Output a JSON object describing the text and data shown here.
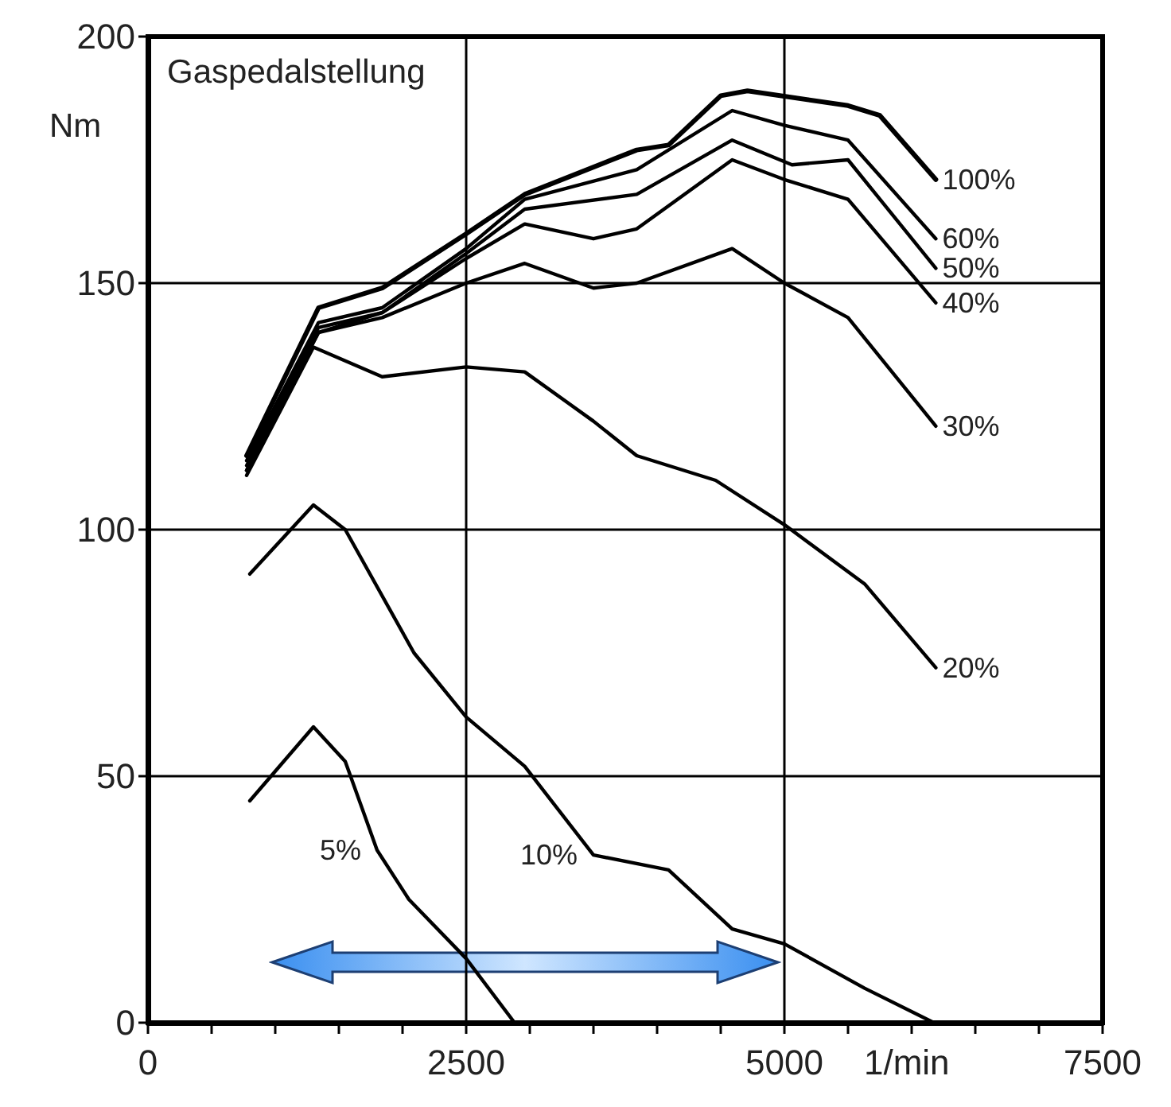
{
  "chart_data": {
    "type": "line",
    "annotations": [
      "Gaspedalstellung"
    ],
    "ylabel": "Nm",
    "xlabel": "1/min",
    "xlim": [
      0,
      7500
    ],
    "ylim": [
      0,
      200
    ],
    "xticks": [
      0,
      {
        "value": 500,
        "label": null
      },
      {
        "value": 1000,
        "label": null
      },
      {
        "value": 1500,
        "label": null
      },
      {
        "value": 2000,
        "label": null
      },
      2500,
      {
        "value": 3000,
        "label": null
      },
      {
        "value": 3500,
        "label": null
      },
      {
        "value": 4000,
        "label": null
      },
      {
        "value": 4500,
        "label": null
      },
      5000,
      {
        "value": 5500,
        "label": null
      },
      {
        "value": 6000,
        "label": null
      },
      {
        "value": 6500,
        "label": null
      },
      {
        "value": 7000,
        "label": null
      },
      7500
    ],
    "yticks": [
      0,
      50,
      100,
      150,
      200
    ],
    "grid": true,
    "marker": "none",
    "line_style": "solid",
    "series": [
      {
        "name": "100%",
        "color": "#000000",
        "x": [
          775,
          1340,
          1840,
          2500,
          2960,
          3840,
          4090,
          4500,
          4710,
          5500,
          5750,
          6190
        ],
        "values": [
          115,
          145,
          149,
          160,
          168,
          177,
          178,
          188,
          189,
          186,
          184,
          171
        ]
      },
      {
        "name": "60%",
        "color": "#000000",
        "x": [
          775,
          1340,
          1840,
          2500,
          2960,
          3840,
          4590,
          5000,
          5500,
          6190
        ],
        "values": [
          114,
          142,
          145,
          157,
          167,
          173,
          185,
          182,
          179,
          159
        ]
      },
      {
        "name": "50%",
        "color": "#000000",
        "x": [
          775,
          1340,
          1840,
          2500,
          2960,
          3840,
          4590,
          5060,
          5500,
          6190
        ],
        "values": [
          113,
          141,
          144,
          156,
          165,
          168,
          179,
          174,
          175,
          153
        ]
      },
      {
        "name": "40%",
        "color": "#000000",
        "x": [
          775,
          1340,
          1840,
          2500,
          2960,
          3500,
          3840,
          4590,
          5000,
          5500,
          6190
        ],
        "values": [
          112,
          140,
          144,
          155,
          162,
          159,
          161,
          175,
          171,
          167,
          146
        ]
      },
      {
        "name": "30%",
        "color": "#000000",
        "x": [
          775,
          1340,
          1840,
          2500,
          2960,
          3500,
          3840,
          4590,
          5000,
          5500,
          6190
        ],
        "values": [
          112,
          140,
          143,
          150,
          154,
          149,
          150,
          157,
          150,
          143,
          121
        ]
      },
      {
        "name": "20%",
        "color": "#000000",
        "x": [
          775,
          1300,
          1840,
          2500,
          2960,
          3500,
          3840,
          4460,
          5000,
          5630,
          6190
        ],
        "values": [
          111,
          137,
          131,
          133,
          132,
          122,
          115,
          110,
          101,
          89,
          72
        ]
      },
      {
        "name": "10%",
        "color": "#000000",
        "x": [
          800,
          1300,
          1550,
          2090,
          2500,
          2960,
          3500,
          4090,
          4590,
          5000,
          5630,
          6175
        ],
        "values": [
          91,
          105,
          100,
          75,
          62,
          52,
          34,
          31,
          19,
          16,
          7,
          0
        ]
      },
      {
        "name": "5%",
        "color": "#000000",
        "x": [
          800,
          1300,
          1550,
          1800,
          2050,
          2500,
          2880
        ],
        "values": [
          45,
          60,
          53,
          35,
          25,
          13,
          0
        ]
      }
    ]
  }
}
